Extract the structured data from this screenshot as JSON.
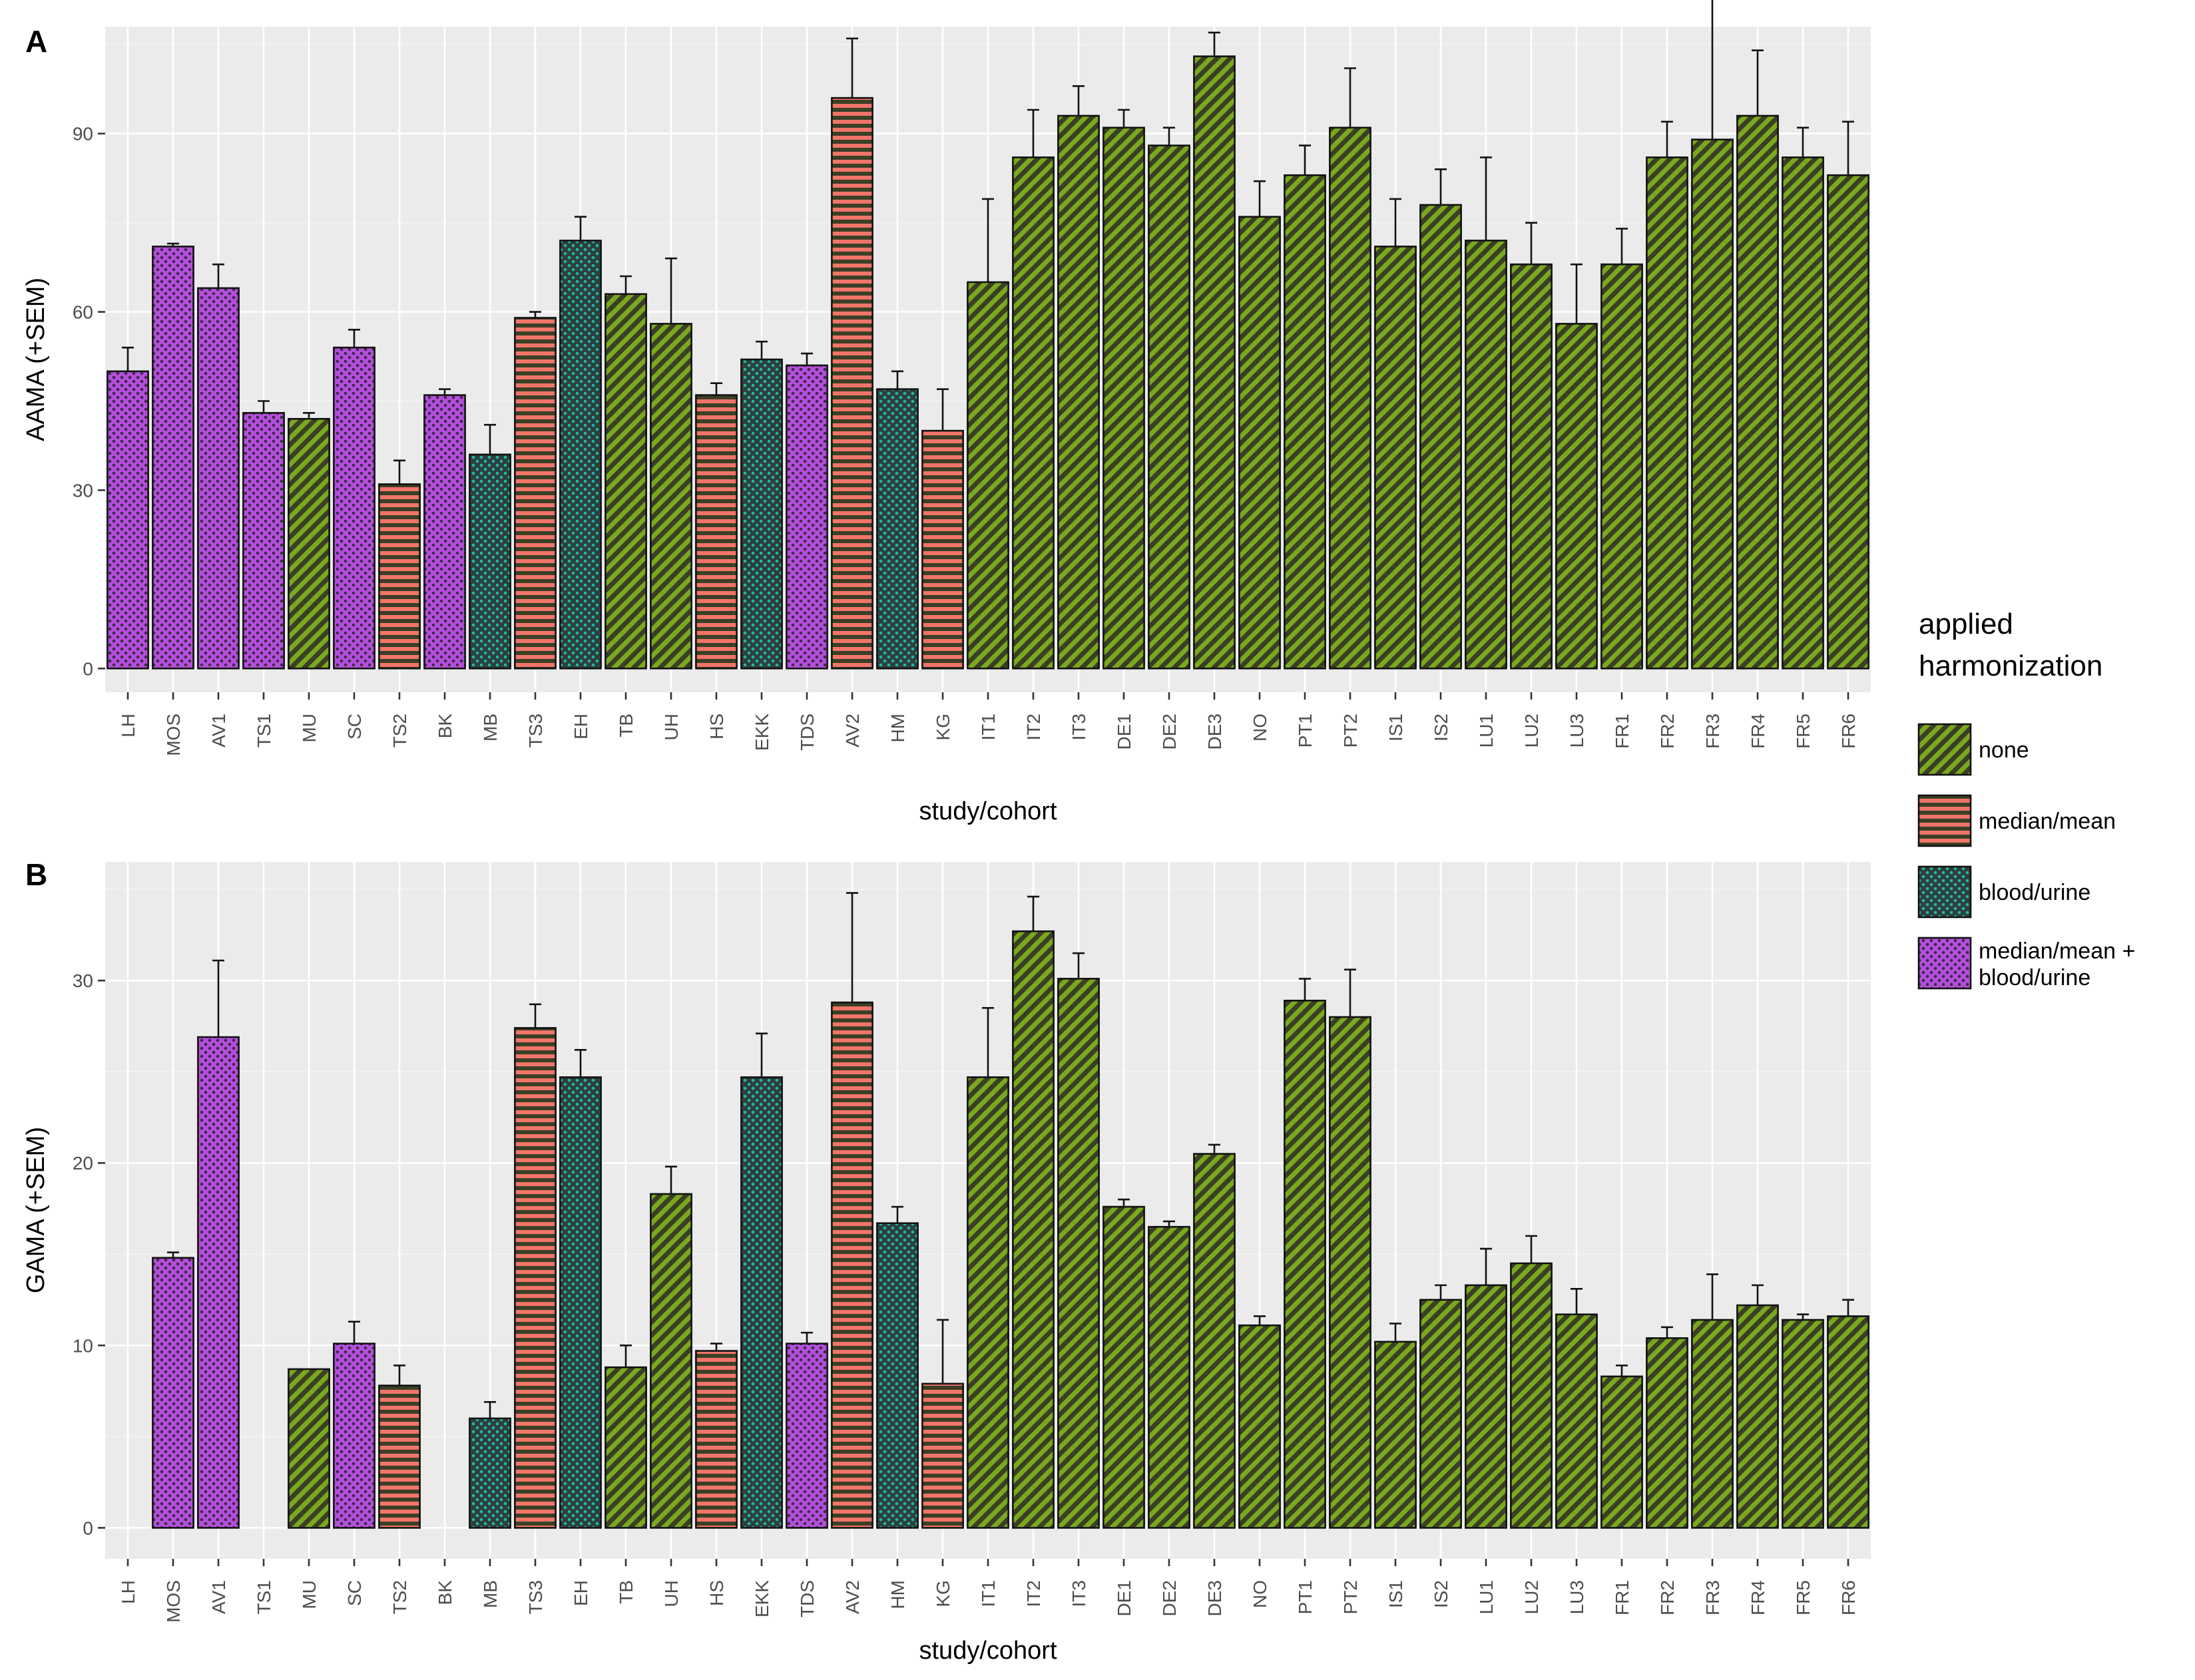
{
  "figure": {
    "legend": {
      "title_line1": "applied",
      "title_line2": "harmonization",
      "items": [
        {
          "key": "none",
          "label": "none"
        },
        {
          "key": "medmean",
          "label": "median/mean"
        },
        {
          "key": "blood",
          "label": "blood/urine"
        },
        {
          "key": "both",
          "label_line1": "median/mean +",
          "label_line2": "blood/urine"
        }
      ]
    },
    "fills": {
      "none": {
        "base": "#3a3f25",
        "pattern": "#7aa81e",
        "style": "diagonal"
      },
      "medmean": {
        "base": "#3a3f25",
        "pattern": "#f07468",
        "style": "horizontal"
      },
      "blood": {
        "base": "#2d3f3c",
        "pattern": "#22b5aa",
        "style": "dots"
      },
      "both": {
        "base": "#b44fdc",
        "pattern": "#3d2b47",
        "style": "dots"
      }
    }
  },
  "chart_data": [
    {
      "panel": "A",
      "type": "bar",
      "title": "",
      "xlabel": "study/cohort",
      "ylabel": "AAMA (+SEM)",
      "ylim": [
        -4,
        108
      ],
      "yticks": [
        0,
        30,
        60,
        90
      ],
      "categories": [
        "LH",
        "MOS",
        "AV1",
        "TS1",
        "MU",
        "SC",
        "TS2",
        "BK",
        "MB",
        "TS3",
        "EH",
        "TB",
        "UH",
        "HS",
        "EKK",
        "TDS",
        "AV2",
        "HM",
        "KG",
        "IT1",
        "IT2",
        "IT3",
        "DE1",
        "DE2",
        "DE3",
        "NO",
        "PT1",
        "PT2",
        "IS1",
        "IS2",
        "LU1",
        "LU2",
        "LU3",
        "FR1",
        "FR2",
        "FR3",
        "FR4",
        "FR5",
        "FR6"
      ],
      "harmonization": [
        "both",
        "both",
        "both",
        "both",
        "none",
        "both",
        "medmean",
        "both",
        "blood",
        "medmean",
        "blood",
        "none",
        "none",
        "medmean",
        "blood",
        "both",
        "medmean",
        "blood",
        "medmean",
        "none",
        "none",
        "none",
        "none",
        "none",
        "none",
        "none",
        "none",
        "none",
        "none",
        "none",
        "none",
        "none",
        "none",
        "none",
        "none",
        "none",
        "none",
        "none",
        "none"
      ],
      "values": [
        50,
        71,
        64,
        43,
        42,
        54,
        31,
        46,
        36,
        59,
        72,
        63,
        58,
        46,
        52,
        51,
        96,
        47,
        40,
        65,
        86,
        93,
        91,
        88,
        103,
        76,
        83,
        91,
        71,
        78,
        72,
        68,
        58,
        68,
        86,
        89,
        93,
        86,
        83
      ],
      "sem": [
        4,
        0.5,
        4,
        2,
        1,
        3,
        4,
        1,
        5,
        1,
        4,
        3,
        11,
        2,
        3,
        2,
        10,
        3,
        7,
        14,
        8,
        5,
        3,
        3,
        4,
        6,
        5,
        10,
        8,
        6,
        14,
        7,
        10,
        6,
        6,
        24,
        11,
        5,
        9
      ]
    },
    {
      "panel": "B",
      "type": "bar",
      "title": "",
      "xlabel": "study/cohort",
      "ylabel": "GAMA (+SEM)",
      "ylim": [
        -1.7,
        36.5
      ],
      "yticks": [
        0,
        10,
        20,
        30
      ],
      "categories": [
        "LH",
        "MOS",
        "AV1",
        "TS1",
        "MU",
        "SC",
        "TS2",
        "BK",
        "MB",
        "TS3",
        "EH",
        "TB",
        "UH",
        "HS",
        "EKK",
        "TDS",
        "AV2",
        "HM",
        "KG",
        "IT1",
        "IT2",
        "IT3",
        "DE1",
        "DE2",
        "DE3",
        "NO",
        "PT1",
        "PT2",
        "IS1",
        "IS2",
        "LU1",
        "LU2",
        "LU3",
        "FR1",
        "FR2",
        "FR3",
        "FR4",
        "FR5",
        "FR6"
      ],
      "harmonization": [
        "both",
        "both",
        "both",
        "both",
        "none",
        "both",
        "medmean",
        "both",
        "blood",
        "medmean",
        "blood",
        "none",
        "none",
        "medmean",
        "blood",
        "both",
        "medmean",
        "blood",
        "medmean",
        "none",
        "none",
        "none",
        "none",
        "none",
        "none",
        "none",
        "none",
        "none",
        "none",
        "none",
        "none",
        "none",
        "none",
        "none",
        "none",
        "none",
        "none",
        "none",
        "none"
      ],
      "values": [
        0,
        14.8,
        26.9,
        0,
        8.7,
        10.1,
        7.8,
        0,
        6.0,
        27.4,
        24.7,
        8.8,
        18.3,
        9.7,
        24.7,
        10.1,
        28.8,
        16.7,
        7.9,
        24.7,
        32.7,
        30.1,
        17.6,
        16.5,
        20.5,
        11.1,
        28.9,
        28.0,
        10.2,
        12.5,
        13.3,
        14.5,
        11.7,
        8.3,
        10.4,
        11.4,
        12.2,
        11.4,
        11.6
      ],
      "sem": [
        0,
        0.3,
        4.2,
        0,
        0,
        1.2,
        1.1,
        0,
        0.9,
        1.3,
        1.5,
        1.2,
        1.5,
        0.4,
        2.4,
        0.6,
        6.0,
        0.9,
        3.5,
        3.8,
        1.9,
        1.4,
        0.4,
        0.3,
        0.5,
        0.5,
        1.2,
        2.6,
        1.0,
        0.8,
        2.0,
        1.5,
        1.4,
        0.6,
        0.6,
        2.5,
        1.1,
        0.3,
        0.9
      ]
    }
  ]
}
